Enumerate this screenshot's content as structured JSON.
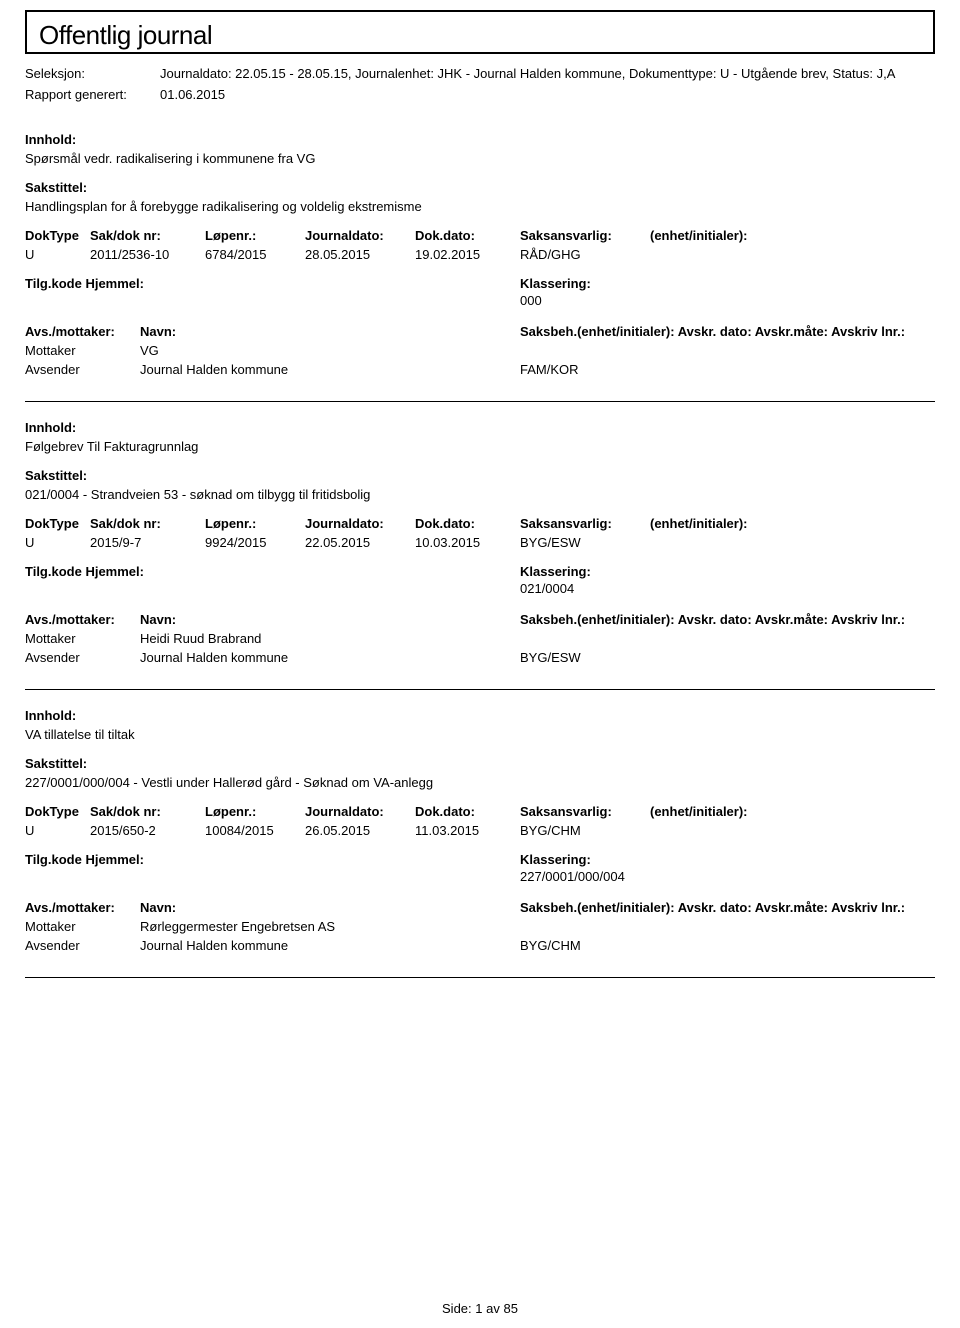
{
  "header": {
    "title": "Offentlig journal"
  },
  "meta": {
    "seleksjon_label": "Seleksjon:",
    "seleksjon_value": "Journaldato: 22.05.15 - 28.05.15, Journalenhet: JHK - Journal Halden kommune, Dokumenttype: U - Utgående brev, Status: J,A",
    "rapport_label": "Rapport generert:",
    "rapport_value": "01.06.2015"
  },
  "table_headers": {
    "doktype": "DokType",
    "sakdok": "Sak/dok nr:",
    "lopenr": "Løpenr.:",
    "journaldato": "Journaldato:",
    "dokdato": "Dok.dato:",
    "saksansvarlig": "Saksansvarlig:",
    "enhet": "(enhet/initialer):"
  },
  "labels": {
    "innhold": "Innhold:",
    "sakstittel": "Sakstittel:",
    "tilgkode": "Tilg.kode",
    "hjemmel": "Hjemmel:",
    "klassering": "Klassering:",
    "avs_mottaker": "Avs./mottaker:",
    "navn": "Navn:",
    "saksbeh": "Saksbeh.(enhet/initialer): Avskr. dato: Avskr.måte: Avskriv lnr.:",
    "mottaker": "Mottaker",
    "avsender": "Avsender"
  },
  "entries": [
    {
      "innhold": "Spørsmål vedr. radikalisering i kommunene fra VG",
      "sakstittel": "Handlingsplan for å forebygge radikalisering og voldelig ekstremisme",
      "doktype": "U",
      "sakdok": "2011/2536-10",
      "lopenr": "6784/2015",
      "journaldato": "28.05.2015",
      "dokdato": "19.02.2015",
      "saksansvarlig": "RÅD/GHG",
      "klassering": "000",
      "mottaker_navn": "VG",
      "avsender_navn": "Journal Halden kommune",
      "avsender_kode": "FAM/KOR"
    },
    {
      "innhold": "Følgebrev Til Fakturagrunnlag",
      "sakstittel": "021/0004 - Strandveien 53 - søknad om tilbygg til fritidsbolig",
      "doktype": "U",
      "sakdok": "2015/9-7",
      "lopenr": "9924/2015",
      "journaldato": "22.05.2015",
      "dokdato": "10.03.2015",
      "saksansvarlig": "BYG/ESW",
      "klassering": "021/0004",
      "mottaker_navn": "Heidi Ruud Brabrand",
      "avsender_navn": "Journal Halden kommune",
      "avsender_kode": "BYG/ESW"
    },
    {
      "innhold": "VA tillatelse til tiltak",
      "sakstittel": "227/0001/000/004 - Vestli under Hallerød gård - Søknad om VA-anlegg",
      "doktype": "U",
      "sakdok": "2015/650-2",
      "lopenr": "10084/2015",
      "journaldato": "26.05.2015",
      "dokdato": "11.03.2015",
      "saksansvarlig": "BYG/CHM",
      "klassering": "227/0001/000/004",
      "mottaker_navn": "Rørleggermester Engebretsen AS",
      "avsender_navn": "Journal Halden kommune",
      "avsender_kode": "BYG/CHM"
    }
  ],
  "footer": {
    "side_label": "Side:",
    "page_current": "1",
    "page_sep": "av",
    "page_total": "85"
  }
}
